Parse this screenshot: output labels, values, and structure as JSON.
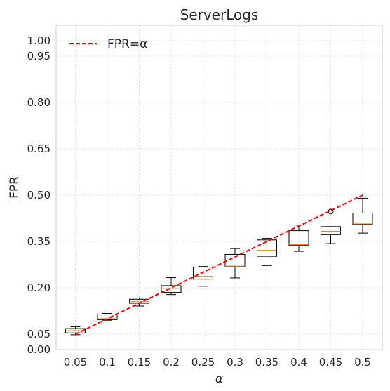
{
  "chart_data": {
    "type": "box",
    "title": "ServerLogs",
    "xlabel": "α",
    "ylabel": "FPR",
    "categories": [
      "0.05",
      "0.1",
      "0.15",
      "0.2",
      "0.25",
      "0.3",
      "0.35",
      "0.4",
      "0.45",
      "0.5"
    ],
    "ylim": [
      0.0,
      1.05
    ],
    "yticks": [
      0.0,
      0.05,
      0.2,
      0.35,
      0.5,
      0.65,
      0.8,
      0.95,
      1.0
    ],
    "ytick_labels": [
      "0.00",
      "0.05",
      "0.20",
      "0.35",
      "0.50",
      "0.65",
      "0.80",
      "0.95",
      "1.00"
    ],
    "grid": true,
    "legend": {
      "placement": "top-left",
      "entries": [
        {
          "label": "FPR=α",
          "color": "#ff0000",
          "style": "dashed"
        }
      ]
    },
    "reference_line": {
      "name": "FPR=α",
      "x": [
        0.05,
        0.5
      ],
      "y": [
        0.05,
        0.5
      ],
      "color": "#ff0000"
    },
    "boxes": [
      {
        "x": "0.05",
        "whislo": 0.048,
        "q1": 0.054,
        "med": 0.061,
        "q3": 0.068,
        "whishi": 0.074,
        "fliers": []
      },
      {
        "x": "0.1",
        "whislo": 0.095,
        "q1": 0.097,
        "med": 0.1,
        "q3": 0.115,
        "whishi": 0.117,
        "fliers": []
      },
      {
        "x": "0.15",
        "whislo": 0.141,
        "q1": 0.15,
        "med": 0.155,
        "q3": 0.163,
        "whishi": 0.167,
        "fliers": []
      },
      {
        "x": "0.2",
        "whislo": 0.178,
        "q1": 0.185,
        "med": 0.197,
        "q3": 0.207,
        "whishi": 0.233,
        "fliers": []
      },
      {
        "x": "0.25",
        "whislo": 0.205,
        "q1": 0.228,
        "med": 0.237,
        "q3": 0.267,
        "whishi": 0.269,
        "fliers": []
      },
      {
        "x": "0.3",
        "whislo": 0.232,
        "q1": 0.268,
        "med": 0.27,
        "q3": 0.308,
        "whishi": 0.327,
        "fliers": []
      },
      {
        "x": "0.35",
        "whislo": 0.272,
        "q1": 0.302,
        "med": 0.321,
        "q3": 0.355,
        "whishi": 0.36,
        "fliers": []
      },
      {
        "x": "0.4",
        "whislo": 0.318,
        "q1": 0.337,
        "med": 0.34,
        "q3": 0.385,
        "whishi": 0.403,
        "fliers": []
      },
      {
        "x": "0.45",
        "whislo": 0.343,
        "q1": 0.372,
        "med": 0.383,
        "q3": 0.398,
        "whishi": 0.398,
        "fliers": [
          0.447
        ]
      },
      {
        "x": "0.5",
        "whislo": 0.377,
        "q1": 0.405,
        "med": 0.407,
        "q3": 0.442,
        "whishi": 0.49,
        "fliers": []
      }
    ],
    "colors": {
      "box": "#000000",
      "median": "#ff7f0e",
      "reference": "#ff0000"
    }
  }
}
